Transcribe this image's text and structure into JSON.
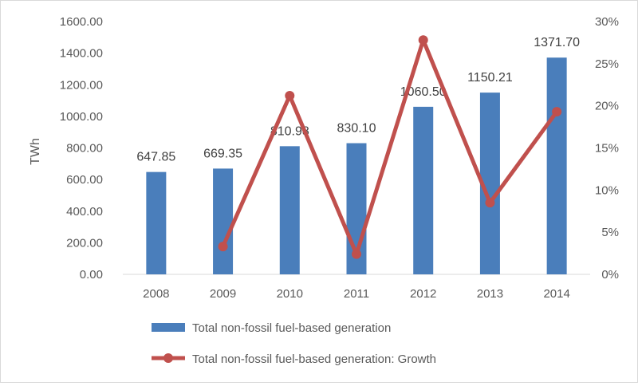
{
  "chart_data": {
    "type": "bar",
    "categories": [
      "2008",
      "2009",
      "2010",
      "2011",
      "2012",
      "2013",
      "2014"
    ],
    "series": [
      {
        "name": "Total non-fossil fuel-based generation",
        "type": "bar",
        "axis": "left",
        "color": "#4a7ebb",
        "values": [
          647.85,
          669.35,
          810.98,
          830.1,
          1060.5,
          1150.21,
          1371.7
        ],
        "labels": [
          "647.85",
          "669.35",
          "810.98",
          "830.10",
          "1060.50",
          "1150.21",
          "1371.70"
        ]
      },
      {
        "name": "Total non-fossil fuel-based generation: Growth",
        "type": "line",
        "axis": "right",
        "color": "#c0504d",
        "values": [
          null,
          3.3,
          21.2,
          2.4,
          27.8,
          8.5,
          19.3
        ]
      }
    ],
    "ylabel": "TWh",
    "ylim": [
      0,
      1600
    ],
    "yticks": [
      "0.00",
      "200.00",
      "400.00",
      "600.00",
      "800.00",
      "1000.00",
      "1200.00",
      "1400.00",
      "1600.00"
    ],
    "y2lim": [
      0,
      30
    ],
    "y2ticks": [
      "0%",
      "5%",
      "10%",
      "15%",
      "20%",
      "25%",
      "30%"
    ],
    "grid": false,
    "legend_position": "bottom"
  }
}
